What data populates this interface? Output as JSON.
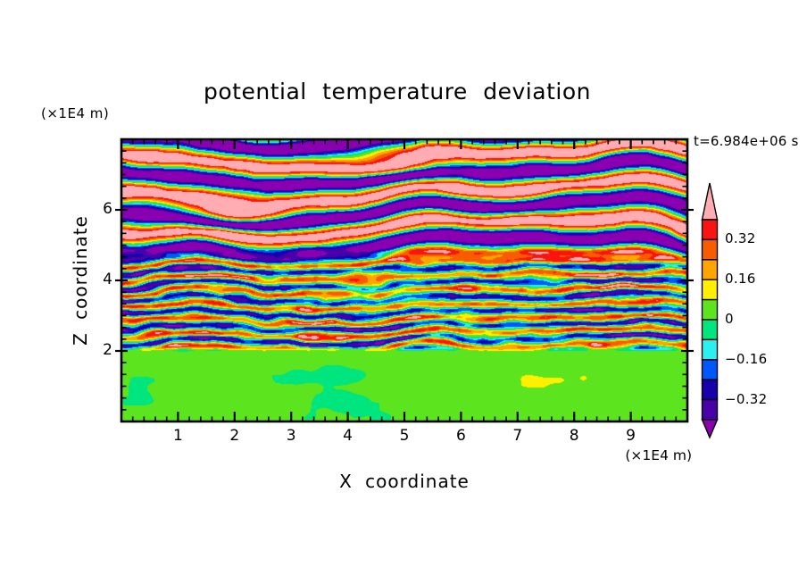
{
  "chart_data": {
    "type": "heatmap",
    "title": "potential temperature deviation",
    "xlabel": "X coordinate",
    "ylabel": "Z coordinate",
    "x_units_label": "(×1E4 m)",
    "y_units_label": "(×1E4 m)",
    "time_label": "t=6.984e+06 s",
    "xlim": [
      0,
      10
    ],
    "ylim": [
      0,
      8
    ],
    "x_major_ticks": [
      1,
      2,
      3,
      4,
      5,
      6,
      7,
      8,
      9
    ],
    "x_minor_step": 0.2,
    "y_major_ticks": [
      2,
      4,
      6
    ],
    "y_minor_step": 0.3333,
    "grid": false,
    "frame_color": "#000000",
    "background_color": "#ffffff",
    "colorbar": {
      "orientation": "vertical-right",
      "levels": [
        -0.4,
        -0.32,
        -0.24,
        -0.16,
        -0.08,
        0,
        0.08,
        0.16,
        0.24,
        0.32,
        0.4
      ],
      "tick_labels": [
        {
          "value": 0.32,
          "text": "0.32"
        },
        {
          "value": 0.16,
          "text": "0.16"
        },
        {
          "value": 0,
          "text": "0"
        },
        {
          "value": -0.16,
          "text": "−0.16"
        },
        {
          "value": -0.32,
          "text": "−0.32"
        }
      ],
      "segment_colors_top_to_bottom": [
        "#F81410",
        "#F85C00",
        "#FFA500",
        "#FFF000",
        "#5CE41E",
        "#00E57D",
        "#2CEFEF",
        "#0058FA",
        "#1800AD",
        "#4A00A8"
      ],
      "over_color": "#FFADB2",
      "under_color": "#8A00B0",
      "outline_color": "#000000"
    },
    "field_regions": [
      {
        "z_range": [
          4.6,
          8.0
        ],
        "description": "stratified wave layers: broad alternating horizontal bands saturated above +0.4 (pink) and below −0.4 (purple) separated by thin rainbow transition filaments"
      },
      {
        "z_range": [
          2.0,
          4.6
        ],
        "description": "turbulent shear zone: dense thin horizontal multicolour streaks spanning roughly −0.4 to +0.4 (red, orange, yellow, green, cyan, blue, navy, with occasional pink/purple)"
      },
      {
        "z_range": [
          0.0,
          2.0
        ],
        "description": "convective boundary layer: smooth swirling blobs near zero, alternating between 0–0.08 (yellow-green) and −0.08–0 (spring green), sparse yellow specks near the interface"
      }
    ]
  }
}
